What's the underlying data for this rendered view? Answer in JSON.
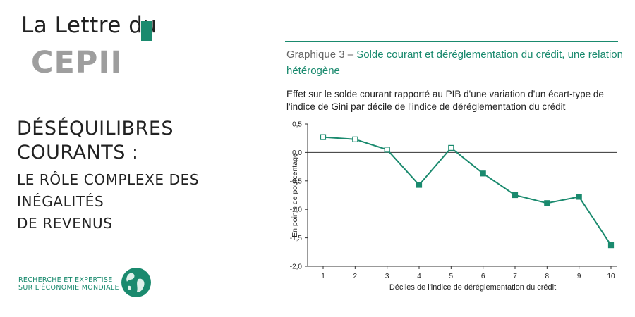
{
  "brand": {
    "line1": "La Lettre du",
    "line2": "CEPII",
    "accent": "#1a8a6e"
  },
  "headline": {
    "line1": "DÉSÉQUILIBRES COURANTS :",
    "line2": "LE RÔLE COMPLEXE DES INÉGALITÉS",
    "line3": "DE REVENUS"
  },
  "tagline": {
    "line1": "RECHERCHE ET EXPERTISE",
    "line2": "SUR L'ÉCONOMIE MONDIALE"
  },
  "icons": [
    "globe-icon"
  ],
  "chart_data": {
    "type": "line",
    "title_label": "Graphique 3 – ",
    "title": "Solde courant et déréglementation du crédit, une relation hétérogène",
    "subtitle": "Effet sur le solde courant rapporté au PIB d'une variation d'un écart-type de l'indice de Gini par décile de l'indice de déréglementation du crédit",
    "xlabel": "Déciles de l'indice de déréglementation du crédit",
    "ylabel": "En points de pourcentage",
    "x": [
      1,
      2,
      3,
      4,
      5,
      6,
      7,
      8,
      9,
      10
    ],
    "x_tick_labels": [
      "1",
      "2",
      "3",
      "4",
      "5",
      "6",
      "7",
      "8",
      "9",
      "10"
    ],
    "ylim": [
      -2.0,
      0.5
    ],
    "y_ticks": [
      0.5,
      0.0,
      -0.5,
      -1.0,
      -1.5,
      -2.0
    ],
    "y_tick_labels": [
      "0,5",
      "0,0",
      "-0,5",
      "-1,0",
      "-1,5",
      "-2,0"
    ],
    "series": [
      {
        "values": [
          0.27,
          0.23,
          0.05,
          -0.57,
          0.08,
          -0.37,
          -0.75,
          -0.89,
          -0.78,
          -1.63
        ],
        "significant": [
          false,
          false,
          false,
          true,
          false,
          true,
          true,
          true,
          true,
          true
        ],
        "color": "#1a8a6e"
      }
    ],
    "marker_legend": "hollow = not significant, filled = significant",
    "zero_line": true,
    "grid": false
  }
}
